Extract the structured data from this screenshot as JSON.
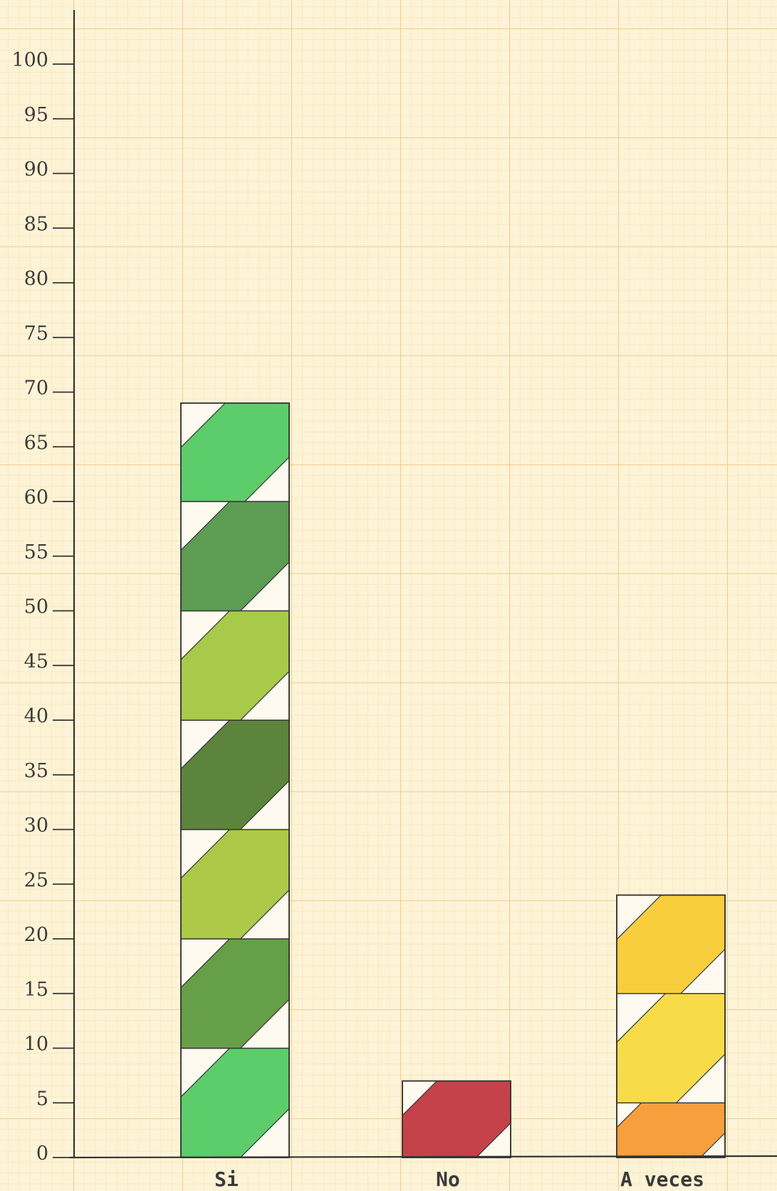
{
  "chart_data": {
    "type": "bar",
    "title": "",
    "xlabel": "",
    "ylabel": "",
    "ylim": [
      0,
      100
    ],
    "yticks": [
      0,
      5,
      10,
      15,
      20,
      25,
      30,
      35,
      40,
      45,
      50,
      55,
      60,
      65,
      70,
      75,
      80,
      85,
      90,
      95,
      100
    ],
    "ytick_labels": [
      "0",
      "5",
      "10",
      "15",
      "20",
      "25",
      "30",
      "35",
      "40",
      "45",
      "50",
      "55",
      "60",
      "65",
      "70",
      "75",
      "80",
      "85",
      "90",
      "95",
      "100"
    ],
    "categories": [
      "Si",
      "No",
      "A veces"
    ],
    "values": [
      69,
      7,
      24
    ],
    "segments": [
      [
        {
          "from": 0,
          "to": 10,
          "color": "#4ec95e"
        },
        {
          "from": 10,
          "to": 20,
          "color": "#58973a"
        },
        {
          "from": 20,
          "to": 30,
          "color": "#a5c43a"
        },
        {
          "from": 30,
          "to": 40,
          "color": "#4f7a2e"
        },
        {
          "from": 40,
          "to": 50,
          "color": "#9fc63c"
        },
        {
          "from": 50,
          "to": 60,
          "color": "#4f9445"
        },
        {
          "from": 60,
          "to": 69,
          "color": "#4fc85f"
        }
      ],
      [
        {
          "from": 0,
          "to": 7,
          "color": "#c0323c"
        }
      ],
      [
        {
          "from": 0,
          "to": 5,
          "color": "#f6972e"
        },
        {
          "from": 5,
          "to": 15,
          "color": "#f7d83a"
        },
        {
          "from": 15,
          "to": 24,
          "color": "#f7c92f"
        }
      ]
    ],
    "grid": true,
    "legend": "none"
  },
  "colors": {
    "paper": "#fdf3d6",
    "grid_fine": "#f5d9a0",
    "grid_major": "#f0c27a",
    "ink": "#333333"
  }
}
